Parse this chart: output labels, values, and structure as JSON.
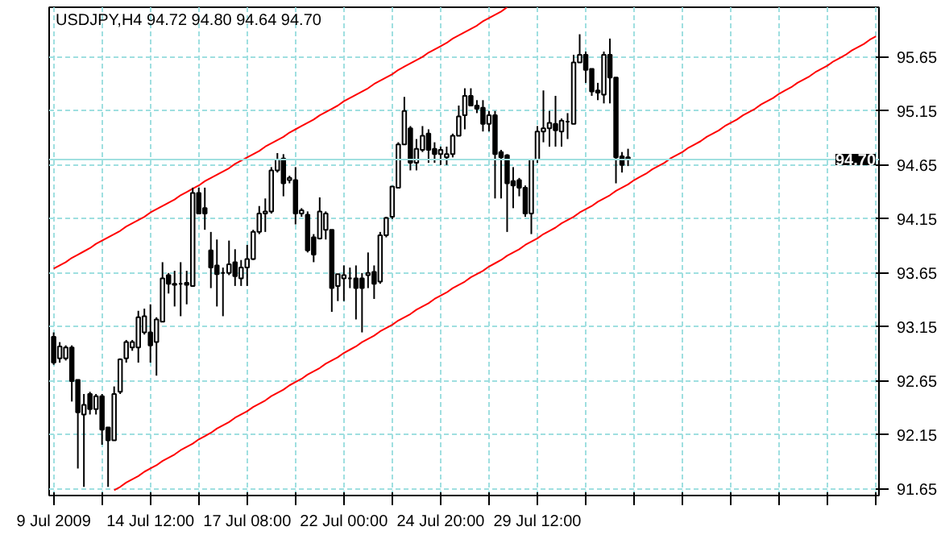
{
  "chart_data": {
    "type": "candlestick",
    "title": "USDJPY,H4  94.72 94.80 94.64 94.70",
    "categories": [
      "9 Jul 2009",
      null,
      null,
      null,
      null,
      null,
      null,
      null,
      null,
      null,
      null,
      null,
      null,
      null,
      null,
      null,
      "14 Jul 12:00",
      null,
      null,
      null,
      null,
      null,
      null,
      null,
      null,
      null,
      null,
      null,
      null,
      null,
      null,
      null,
      "17 Jul 08:00",
      null,
      null,
      null,
      null,
      null,
      null,
      null,
      null,
      null,
      null,
      null,
      null,
      null,
      null,
      null,
      "22 Jul 00:00",
      null,
      null,
      null,
      null,
      null,
      null,
      null,
      null,
      null,
      null,
      null,
      null,
      null,
      null,
      null,
      "24 Jul 20:00",
      null,
      null,
      null,
      null,
      null,
      null,
      null,
      null,
      null,
      null,
      null,
      null,
      null,
      null,
      null,
      "29 Jul 12:00",
      null,
      null,
      null,
      null,
      null,
      null,
      null,
      null,
      null,
      null,
      null,
      null,
      null,
      null,
      null,
      null,
      null,
      null,
      null,
      null,
      null,
      null,
      null,
      null,
      null,
      null,
      null,
      null,
      null,
      null,
      null,
      null,
      null,
      null,
      null,
      null,
      null,
      null,
      null,
      null,
      null,
      null,
      null,
      null,
      null,
      null,
      null,
      null,
      null,
      null,
      null,
      null,
      null,
      null,
      null,
      null
    ],
    "ohlc": [
      [
        93.06,
        93.1,
        92.8,
        92.82
      ],
      [
        92.86,
        93.01,
        92.82,
        92.97
      ],
      [
        92.86,
        92.98,
        92.84,
        92.96
      ],
      [
        92.96,
        92.98,
        92.46,
        92.65
      ],
      [
        92.66,
        92.66,
        91.84,
        92.36
      ],
      [
        92.34,
        92.53,
        91.67,
        92.43
      ],
      [
        92.53,
        92.55,
        92.34,
        92.39
      ],
      [
        92.39,
        92.53,
        92.34,
        92.51
      ],
      [
        92.51,
        92.53,
        92.06,
        92.2
      ],
      [
        92.22,
        92.22,
        91.67,
        92.1
      ],
      [
        92.1,
        92.6,
        92.1,
        92.53
      ],
      [
        92.55,
        92.86,
        92.53,
        92.85
      ],
      [
        92.86,
        93.03,
        92.82,
        93.01
      ],
      [
        92.96,
        93.03,
        92.93,
        93.01
      ],
      [
        92.96,
        93.3,
        92.82,
        93.24
      ],
      [
        93.1,
        93.32,
        93.08,
        93.25
      ],
      [
        93.1,
        93.36,
        92.82,
        92.98
      ],
      [
        93.01,
        93.24,
        92.7,
        93.22
      ],
      [
        93.2,
        93.75,
        93.2,
        93.6
      ],
      [
        93.63,
        93.65,
        93.46,
        93.55
      ],
      [
        93.55,
        93.67,
        93.34,
        93.54
      ],
      [
        93.55,
        93.75,
        93.25,
        93.55
      ],
      [
        93.56,
        93.67,
        93.36,
        93.54
      ],
      [
        93.53,
        94.44,
        93.53,
        94.39
      ],
      [
        94.39,
        94.44,
        94.2,
        94.2
      ],
      [
        94.25,
        94.44,
        94.05,
        94.2
      ],
      [
        93.86,
        94.03,
        93.51,
        93.7
      ],
      [
        93.72,
        93.96,
        93.34,
        93.64
      ],
      [
        93.65,
        93.7,
        93.25,
        93.65
      ],
      [
        93.65,
        93.95,
        93.63,
        93.73
      ],
      [
        93.75,
        93.87,
        93.53,
        93.62
      ],
      [
        93.6,
        93.77,
        93.53,
        93.7
      ],
      [
        93.7,
        93.91,
        93.53,
        93.78
      ],
      [
        93.78,
        94.05,
        93.77,
        94.03
      ],
      [
        94.03,
        94.27,
        94.01,
        94.2
      ],
      [
        94.2,
        94.34,
        94.03,
        94.22
      ],
      [
        94.22,
        94.63,
        94.2,
        94.6
      ],
      [
        94.6,
        94.76,
        94.58,
        94.7
      ],
      [
        94.71,
        94.75,
        94.36,
        94.48
      ],
      [
        94.51,
        94.55,
        94.48,
        94.53
      ],
      [
        94.51,
        94.63,
        94.1,
        94.2
      ],
      [
        94.2,
        94.25,
        94.17,
        94.23
      ],
      [
        94.19,
        94.22,
        93.84,
        93.86
      ],
      [
        93.98,
        94.01,
        93.75,
        93.82
      ],
      [
        93.97,
        94.35,
        93.96,
        94.22
      ],
      [
        94.05,
        94.22,
        93.96,
        94.2
      ],
      [
        94.05,
        94.05,
        93.29,
        93.51
      ],
      [
        93.53,
        93.64,
        93.39,
        93.64
      ],
      [
        93.6,
        93.72,
        93.39,
        93.63
      ],
      [
        93.6,
        93.7,
        93.51,
        93.6
      ],
      [
        93.6,
        93.72,
        93.22,
        93.51
      ],
      [
        93.6,
        93.65,
        93.1,
        93.51
      ],
      [
        93.63,
        93.84,
        93.51,
        93.65
      ],
      [
        93.66,
        93.72,
        93.41,
        93.55
      ],
      [
        93.57,
        94.03,
        93.55,
        94.0
      ],
      [
        94.0,
        94.17,
        93.98,
        94.16
      ],
      [
        94.17,
        94.45,
        94.15,
        94.45
      ],
      [
        94.44,
        94.86,
        94.44,
        94.84
      ],
      [
        94.84,
        95.28,
        94.84,
        95.15
      ],
      [
        94.99,
        95.01,
        94.6,
        94.67
      ],
      [
        94.67,
        94.89,
        94.6,
        94.8
      ],
      [
        94.79,
        95.01,
        94.77,
        94.92
      ],
      [
        94.94,
        94.98,
        94.67,
        94.79
      ],
      [
        94.8,
        94.86,
        94.67,
        94.75
      ],
      [
        94.75,
        94.82,
        94.65,
        94.79
      ],
      [
        94.72,
        94.82,
        94.65,
        94.75
      ],
      [
        94.75,
        94.94,
        94.72,
        94.92
      ],
      [
        94.92,
        95.2,
        94.92,
        95.1
      ],
      [
        95.11,
        95.36,
        94.98,
        95.29
      ],
      [
        95.29,
        95.36,
        95.2,
        95.2
      ],
      [
        95.2,
        95.25,
        95.13,
        95.17
      ],
      [
        95.18,
        95.25,
        94.96,
        95.03
      ],
      [
        95.03,
        95.15,
        94.96,
        95.11
      ],
      [
        95.11,
        95.15,
        94.34,
        94.75
      ],
      [
        94.77,
        94.79,
        94.34,
        94.72
      ],
      [
        94.74,
        94.75,
        94.03,
        94.48
      ],
      [
        94.5,
        94.63,
        94.25,
        94.46
      ],
      [
        94.51,
        94.53,
        94.36,
        94.44
      ],
      [
        94.44,
        94.46,
        94.17,
        94.2
      ],
      [
        94.2,
        94.7,
        94.01,
        94.7
      ],
      [
        94.7,
        95.01,
        94.67,
        94.96
      ],
      [
        94.96,
        95.34,
        94.86,
        94.99
      ],
      [
        94.99,
        95.15,
        94.82,
        95.04
      ],
      [
        95.03,
        95.29,
        94.82,
        94.97
      ],
      [
        94.96,
        95.08,
        94.82,
        95.06
      ],
      [
        95.05,
        95.13,
        94.89,
        95.05
      ],
      [
        95.03,
        95.67,
        95.03,
        95.6
      ],
      [
        95.6,
        95.86,
        95.6,
        95.67
      ],
      [
        95.67,
        95.7,
        95.41,
        95.53
      ],
      [
        95.54,
        95.54,
        95.29,
        95.33
      ],
      [
        95.34,
        95.41,
        95.25,
        95.32
      ],
      [
        95.3,
        95.7,
        95.22,
        95.67
      ],
      [
        95.67,
        95.82,
        95.22,
        95.46
      ],
      [
        95.46,
        95.46,
        94.48,
        94.72
      ],
      [
        94.73,
        94.77,
        94.58,
        94.65
      ],
      [
        94.72,
        94.8,
        94.64,
        94.7
      ],
      null,
      null,
      null,
      null,
      null,
      null,
      null,
      null,
      null,
      null,
      null,
      null,
      null,
      null,
      null,
      null,
      null,
      null,
      null,
      null,
      null,
      null,
      null,
      null,
      null,
      null,
      null,
      null,
      null,
      null,
      null,
      null,
      null,
      null,
      null,
      null,
      null,
      null,
      null,
      null,
      null
    ],
    "series": [
      {
        "type": "line",
        "color": "#ff0000",
        "values": [
          93.69,
          93.72,
          93.75,
          93.79,
          93.82,
          93.85,
          93.88,
          93.92,
          93.95,
          93.98,
          94.01,
          94.04,
          94.08,
          94.11,
          94.14,
          94.17,
          94.21,
          94.24,
          94.27,
          94.3,
          94.33,
          94.37,
          94.4,
          94.43,
          94.46,
          94.5,
          94.53,
          94.56,
          94.59,
          94.62,
          94.66,
          94.69,
          94.72,
          94.75,
          94.78,
          94.82,
          94.85,
          94.88,
          94.91,
          94.95,
          94.98,
          95.01,
          95.04,
          95.07,
          95.11,
          95.14,
          95.17,
          95.2,
          95.24,
          95.27,
          95.3,
          95.33,
          95.36,
          95.4,
          95.43,
          95.46,
          95.49,
          95.53,
          95.56,
          95.59,
          95.62,
          95.65,
          95.69,
          95.72,
          95.75,
          95.78,
          95.82,
          95.85,
          95.88,
          95.91,
          95.94,
          95.98,
          96.01,
          96.04,
          96.07,
          96.11,
          null,
          null,
          null,
          null,
          null,
          null,
          null,
          null,
          null,
          null,
          null,
          null,
          null,
          null,
          null,
          null,
          null,
          null,
          null,
          null,
          null,
          null,
          null,
          null,
          null,
          null,
          null,
          null,
          null,
          null,
          null,
          null,
          null,
          null,
          null,
          null,
          null,
          null,
          null,
          null,
          null,
          null,
          null,
          null,
          null,
          null,
          null,
          null,
          null,
          null,
          null,
          null,
          null,
          null,
          null,
          null,
          null,
          null,
          null,
          null,
          null
        ]
      },
      {
        "type": "line",
        "color": "#ff0000",
        "values": [
          null,
          null,
          null,
          null,
          null,
          null,
          null,
          null,
          null,
          null,
          91.64,
          91.67,
          91.71,
          91.74,
          91.77,
          91.81,
          91.84,
          91.87,
          91.91,
          91.94,
          91.97,
          92.01,
          92.04,
          92.07,
          92.11,
          92.14,
          92.17,
          92.21,
          92.24,
          92.27,
          92.31,
          92.34,
          92.37,
          92.41,
          92.44,
          92.47,
          92.51,
          92.54,
          92.57,
          92.61,
          92.64,
          92.67,
          92.71,
          92.74,
          92.77,
          92.81,
          92.84,
          92.87,
          92.91,
          92.94,
          92.97,
          93.01,
          93.04,
          93.07,
          93.11,
          93.14,
          93.17,
          93.21,
          93.24,
          93.27,
          93.31,
          93.34,
          93.37,
          93.41,
          93.44,
          93.47,
          93.51,
          93.54,
          93.57,
          93.61,
          93.64,
          93.67,
          93.71,
          93.74,
          93.77,
          93.81,
          93.84,
          93.87,
          93.91,
          93.94,
          93.97,
          94.01,
          94.04,
          94.07,
          94.11,
          94.14,
          94.17,
          94.21,
          94.24,
          94.27,
          94.31,
          94.34,
          94.37,
          94.41,
          94.44,
          94.47,
          94.51,
          94.54,
          94.57,
          94.61,
          94.64,
          94.67,
          94.71,
          94.74,
          94.77,
          94.81,
          94.84,
          94.87,
          94.91,
          94.94,
          94.97,
          95.01,
          95.04,
          95.07,
          95.11,
          95.14,
          95.17,
          95.21,
          95.24,
          95.27,
          95.31,
          95.34,
          95.37,
          95.41,
          95.44,
          95.47,
          95.51,
          95.54,
          95.57,
          95.61,
          95.64,
          95.67,
          95.71,
          95.74,
          95.77,
          95.81,
          95.84
        ]
      }
    ],
    "ref_lines": [
      {
        "axis": "y",
        "value": 94.7,
        "label": "94.70",
        "color": "#a0e0e0"
      }
    ],
    "ylim": [
      91.59,
      96.11
    ],
    "yticks": [
      91.65,
      92.15,
      92.65,
      93.15,
      93.65,
      94.15,
      94.65,
      95.15,
      95.65
    ],
    "grid": true
  }
}
